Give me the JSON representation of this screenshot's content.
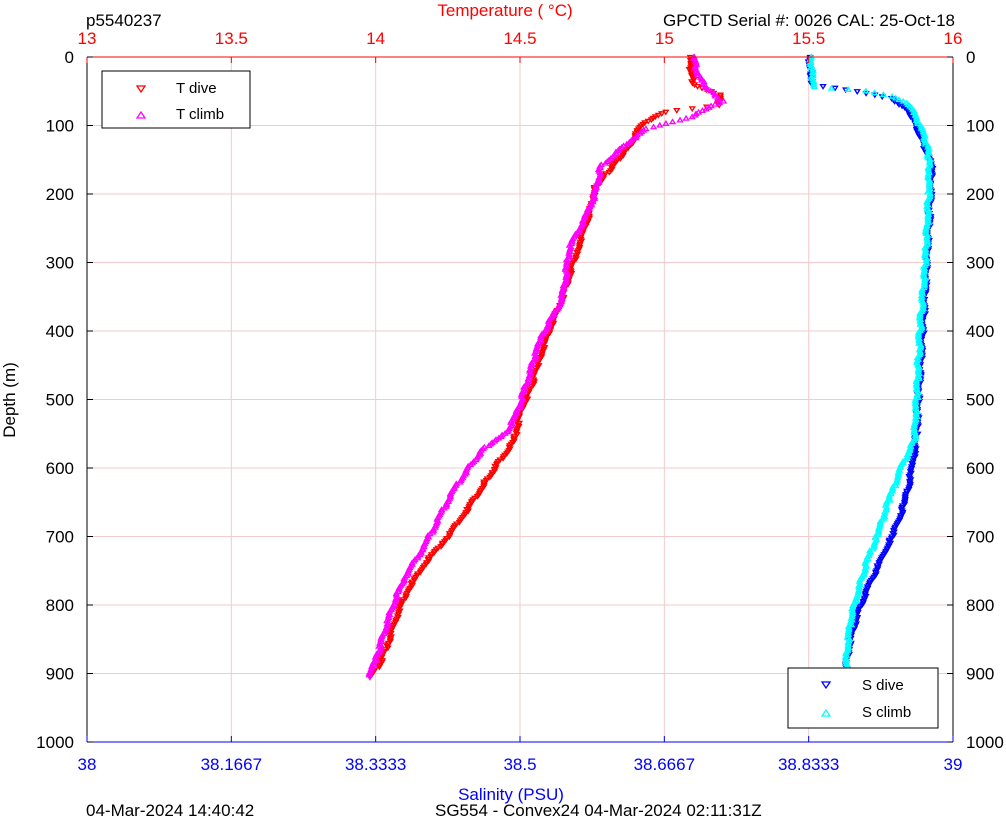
{
  "header": {
    "left_title": "p5540237",
    "right_title": "GPCTD Serial #: 0026 CAL: 25-Oct-18"
  },
  "footer": {
    "left": "04-Mar-2024 14:40:42",
    "center": "SG554 - Convex24 04-Mar-2024 02:11:31Z"
  },
  "colors": {
    "t_dive": "#ff0000",
    "t_climb": "#ff00ff",
    "s_dive": "#0000ff",
    "s_climb": "#00ffff",
    "temp_axis": "#ff0000",
    "sal_axis": "#0000ff",
    "grid": "#f2cccc"
  },
  "chart_data": {
    "type": "scatter",
    "ylabel": "Depth (m)",
    "ylim": [
      0,
      1000
    ],
    "y_reversed": true,
    "y_ticks": [
      "0",
      "100",
      "200",
      "300",
      "400",
      "500",
      "600",
      "700",
      "800",
      "900",
      "1000"
    ],
    "top_axis": {
      "label": "Temperature (   °C)",
      "range": [
        13,
        16
      ],
      "ticks": [
        "13",
        "13.5",
        "14",
        "14.5",
        "15",
        "15.5",
        "16"
      ],
      "grid": true
    },
    "bottom_axis": {
      "label": "Salinity (PSU)",
      "range": [
        38,
        39
      ],
      "ticks": [
        "38",
        "38.1667",
        "38.3333",
        "38.5",
        "38.6667",
        "38.8333",
        "39"
      ]
    },
    "legend_temperature": {
      "placement": "top-left"
    },
    "legend_salinity": {
      "placement": "bottom-right"
    },
    "series": [
      {
        "name": "T dive",
        "axis": "temperature",
        "marker": "triangle-down",
        "points": [
          [
            15.09,
            0
          ],
          [
            15.09,
            20
          ],
          [
            15.1,
            40
          ],
          [
            15.19,
            55
          ],
          [
            15.19,
            70
          ],
          [
            15.0,
            80
          ],
          [
            14.92,
            100
          ],
          [
            14.88,
            130
          ],
          [
            14.84,
            150
          ],
          [
            14.8,
            170
          ],
          [
            14.76,
            190
          ],
          [
            14.74,
            230
          ],
          [
            14.7,
            280
          ],
          [
            14.67,
            320
          ],
          [
            14.64,
            360
          ],
          [
            14.6,
            400
          ],
          [
            14.56,
            450
          ],
          [
            14.54,
            480
          ],
          [
            14.5,
            520
          ],
          [
            14.48,
            560
          ],
          [
            14.43,
            590
          ],
          [
            14.38,
            620
          ],
          [
            14.32,
            660
          ],
          [
            14.25,
            700
          ],
          [
            14.17,
            740
          ],
          [
            14.11,
            780
          ],
          [
            14.07,
            820
          ],
          [
            14.04,
            860
          ],
          [
            14.01,
            890
          ],
          [
            13.98,
            905
          ]
        ]
      },
      {
        "name": "T climb",
        "axis": "temperature",
        "marker": "triangle-up",
        "points": [
          [
            15.1,
            0
          ],
          [
            15.12,
            30
          ],
          [
            15.16,
            50
          ],
          [
            15.2,
            65
          ],
          [
            15.08,
            90
          ],
          [
            14.94,
            105
          ],
          [
            14.86,
            130
          ],
          [
            14.78,
            160
          ],
          [
            14.76,
            200
          ],
          [
            14.72,
            240
          ],
          [
            14.67,
            280
          ],
          [
            14.66,
            320
          ],
          [
            14.64,
            360
          ],
          [
            14.57,
            410
          ],
          [
            14.55,
            440
          ],
          [
            14.52,
            480
          ],
          [
            14.49,
            520
          ],
          [
            14.45,
            550
          ],
          [
            14.38,
            570
          ],
          [
            14.32,
            600
          ],
          [
            14.26,
            640
          ],
          [
            14.21,
            680
          ],
          [
            14.16,
            720
          ],
          [
            14.1,
            760
          ],
          [
            14.06,
            800
          ],
          [
            14.03,
            840
          ],
          [
            14.01,
            870
          ],
          [
            13.99,
            890
          ],
          [
            13.98,
            905
          ]
        ]
      },
      {
        "name": "S dive",
        "axis": "salinity",
        "marker": "triangle-down",
        "points": [
          [
            38.834,
            0
          ],
          [
            38.836,
            20
          ],
          [
            38.838,
            40
          ],
          [
            38.89,
            50
          ],
          [
            38.93,
            60
          ],
          [
            38.95,
            80
          ],
          [
            38.96,
            110
          ],
          [
            38.97,
            140
          ],
          [
            38.975,
            160
          ],
          [
            38.974,
            200
          ],
          [
            38.97,
            300
          ],
          [
            38.965,
            400
          ],
          [
            38.96,
            500
          ],
          [
            38.958,
            550
          ],
          [
            38.953,
            600
          ],
          [
            38.945,
            650
          ],
          [
            38.93,
            700
          ],
          [
            38.915,
            740
          ],
          [
            38.9,
            780
          ],
          [
            38.888,
            820
          ],
          [
            38.88,
            860
          ],
          [
            38.876,
            900
          ]
        ]
      },
      {
        "name": "S climb",
        "axis": "salinity",
        "marker": "triangle-up",
        "points": [
          [
            38.836,
            0
          ],
          [
            38.838,
            30
          ],
          [
            38.841,
            44
          ],
          [
            38.9,
            50
          ],
          [
            38.93,
            58
          ],
          [
            38.95,
            70
          ],
          [
            38.962,
            100
          ],
          [
            38.97,
            130
          ],
          [
            38.973,
            150
          ],
          [
            38.972,
            200
          ],
          [
            38.968,
            300
          ],
          [
            38.962,
            400
          ],
          [
            38.958,
            500
          ],
          [
            38.955,
            560
          ],
          [
            38.94,
            600
          ],
          [
            38.925,
            650
          ],
          [
            38.912,
            700
          ],
          [
            38.9,
            740
          ],
          [
            38.89,
            780
          ],
          [
            38.882,
            820
          ],
          [
            38.878,
            860
          ],
          [
            38.876,
            900
          ]
        ]
      }
    ]
  }
}
